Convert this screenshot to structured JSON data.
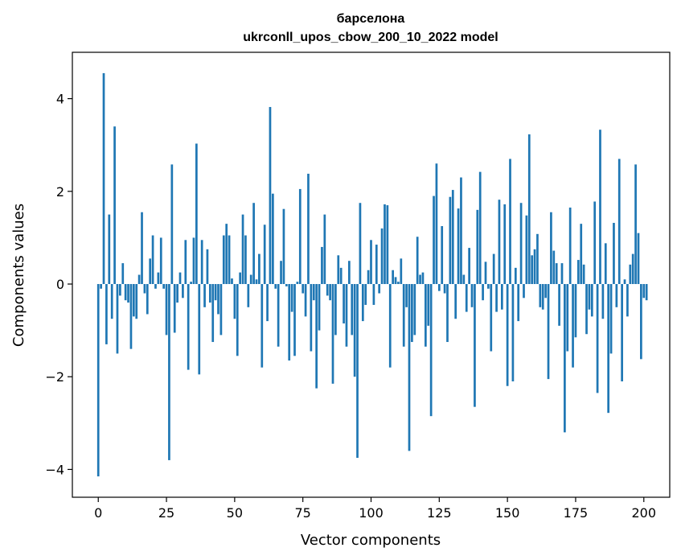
{
  "chart_data": {
    "type": "bar",
    "title_line1": "барселона",
    "title_line2": "ukrconll_upos_cbow_200_10_2022 model",
    "xlabel": "Vector components",
    "ylabel": "Components values",
    "xlim": [
      -9.5,
      209.5
    ],
    "ylim": [
      -4.6,
      5.0
    ],
    "x_ticks": [
      0,
      25,
      50,
      75,
      100,
      125,
      150,
      175,
      200
    ],
    "x_tick_labels": [
      "0",
      "25",
      "50",
      "75",
      "100",
      "125",
      "150",
      "175",
      "200"
    ],
    "y_ticks": [
      -4,
      -2,
      0,
      2,
      4
    ],
    "y_tick_labels": [
      "−4",
      "−2",
      "0",
      "2",
      "4"
    ],
    "bar_color": "#1f77b4",
    "grid": false,
    "values": [
      -4.15,
      -0.1,
      4.55,
      -1.3,
      1.5,
      -0.75,
      3.4,
      -1.5,
      -0.25,
      0.45,
      -0.35,
      -0.4,
      -1.4,
      -0.7,
      -0.75,
      0.2,
      1.55,
      -0.2,
      -0.65,
      0.55,
      1.05,
      -0.1,
      0.25,
      1.0,
      -0.1,
      -1.1,
      -3.8,
      2.58,
      -1.05,
      -0.4,
      0.25,
      -0.3,
      0.95,
      -1.85,
      0.05,
      1.0,
      3.03,
      -1.95,
      0.95,
      -0.5,
      0.75,
      -0.4,
      -1.25,
      -0.35,
      -0.65,
      -1.1,
      1.05,
      1.3,
      1.05,
      0.12,
      -0.75,
      -1.55,
      0.25,
      1.5,
      1.05,
      -0.5,
      0.2,
      1.75,
      0.1,
      0.65,
      -1.8,
      1.28,
      -0.8,
      3.82,
      1.95,
      -0.1,
      -1.35,
      0.5,
      1.62,
      -0.05,
      -1.65,
      -0.6,
      -1.55,
      0.05,
      2.05,
      -0.2,
      -0.7,
      2.38,
      -1.45,
      -0.35,
      -2.25,
      -1.0,
      0.8,
      1.5,
      -0.25,
      -0.35,
      -2.15,
      -1.1,
      0.62,
      0.35,
      -0.85,
      -1.35,
      0.5,
      -1.1,
      -2.0,
      -3.75,
      1.75,
      -0.8,
      -0.45,
      0.3,
      0.95,
      -0.45,
      0.85,
      -0.2,
      1.2,
      1.72,
      1.7,
      -1.8,
      0.3,
      0.15,
      0.05,
      0.55,
      -1.35,
      -0.5,
      -3.6,
      -1.25,
      -1.1,
      1.02,
      0.2,
      0.25,
      -1.35,
      -0.9,
      -2.85,
      1.9,
      2.6,
      -0.15,
      1.25,
      -0.2,
      -1.25,
      1.88,
      2.03,
      -0.75,
      1.63,
      2.3,
      0.2,
      -0.6,
      0.78,
      -0.5,
      -2.65,
      1.6,
      2.42,
      -0.35,
      0.48,
      -0.1,
      -1.45,
      0.65,
      -0.6,
      1.82,
      -0.55,
      1.72,
      -2.2,
      2.7,
      -2.1,
      0.35,
      -0.8,
      1.75,
      -0.3,
      1.48,
      3.23,
      0.62,
      0.75,
      1.08,
      -0.5,
      -0.55,
      -0.3,
      -2.05,
      1.55,
      0.72,
      0.45,
      -0.9,
      0.45,
      -3.2,
      -1.45,
      1.65,
      -1.8,
      -1.15,
      0.52,
      1.3,
      0.42,
      -1.08,
      -0.55,
      -0.7,
      1.78,
      -2.35,
      3.33,
      -0.75,
      0.88,
      -2.78,
      -1.5,
      1.32,
      -0.5,
      2.7,
      -2.1,
      0.1,
      -0.7,
      0.42,
      0.65,
      2.58,
      1.1,
      -1.62,
      -0.3,
      -0.35
    ]
  }
}
